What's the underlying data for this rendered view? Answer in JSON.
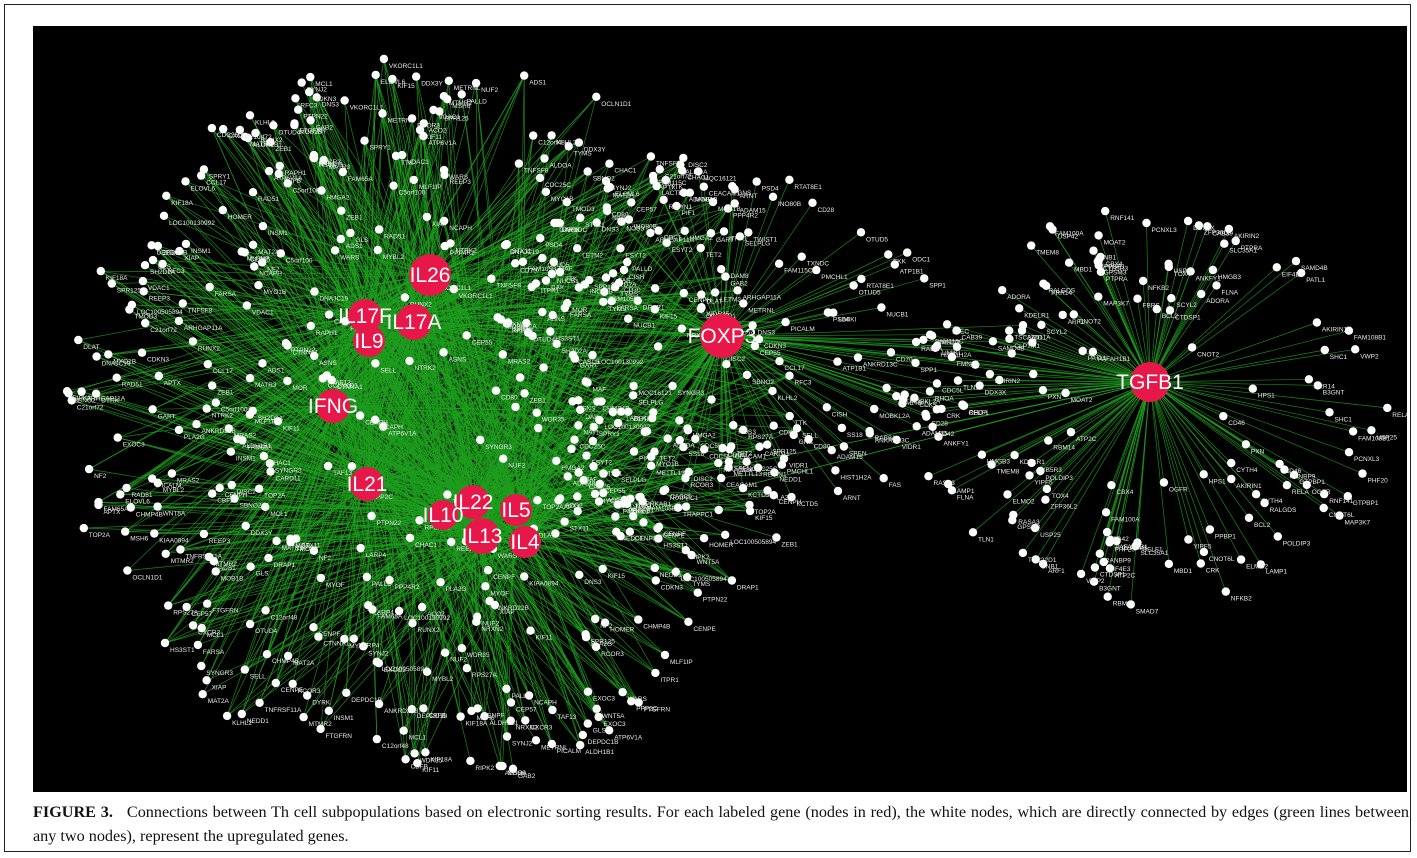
{
  "figure": {
    "number_label": "FIGURE 3.",
    "caption": "Connections between Th cell subpopulations based on electronic sorting results. For each labeled gene (nodes in red), the white nodes, which are directly connected by edges (green lines between any two nodes), represent the upregulated genes."
  },
  "colors": {
    "background": "#000000",
    "hub_node": "#e8174a",
    "gene_node": "#ffffff",
    "edge": "#1f9e1f"
  },
  "network": {
    "hubs": [
      {
        "name": "IL26"
      },
      {
        "name": "IL17F"
      },
      {
        "name": "IL17A"
      },
      {
        "name": "IL9"
      },
      {
        "name": "IFNG"
      },
      {
        "name": "IL21"
      },
      {
        "name": "IL22"
      },
      {
        "name": "IL5"
      },
      {
        "name": "IL10"
      },
      {
        "name": "IL13"
      },
      {
        "name": "IL4"
      },
      {
        "name": "FOXP3"
      },
      {
        "name": "TGFB1"
      }
    ],
    "gene_labels": {
      "il_cluster": [
        "TTK",
        "NUF2",
        "RAD51",
        "LOC100505894",
        "KLHL2",
        "APTX",
        "CENPF",
        "NF2",
        "SYNGR3",
        "NCAPH",
        "PALLD",
        "CENPH",
        "ARHGAP11A",
        "ALDOA",
        "C5orf100",
        "KIF18A",
        "ELOVL6",
        "ADS1",
        "FTGFRN",
        "CENPE",
        "CDKN3",
        "MOB1B",
        "DNS3",
        "SPR125",
        "ASNS",
        "MYBL2",
        "DEPDC1B",
        "CCL17",
        "MYO1B",
        "HMGA2",
        "ALDH1B1",
        "CEP55",
        "KIF11",
        "TOP2A",
        "MTMR2",
        "C21orf72",
        "CDC25C",
        "STX11",
        "FAM65A",
        "KIF15",
        "TYMS",
        "SH2D2A",
        "WDR35",
        "CXCR3",
        "CHAC1",
        "OCLN1D1",
        "MLF1IP",
        "NRXN2",
        "WARS",
        "MYOF",
        "VKORC1L1",
        "FARSA",
        "GART",
        "INSM1",
        "ATP6V1A",
        "VDAC1",
        "MAT2A",
        "MSH6",
        "PPP2C",
        "LARP4",
        "DLAT",
        "EXOC3",
        "METRNL",
        "SBNO2",
        "DISC2",
        "ZEB1",
        "PLA2G",
        "HS3ST1",
        "SYNJ2",
        "XIAP",
        "RCOR3",
        "NEDD1",
        "CBFB",
        "CHMP4B",
        "MATR3",
        "TNFSF8",
        "RUNX2",
        "GLS",
        "OTUD4",
        "MCL1",
        "RPS27A",
        "ZEB1",
        "PTPN22",
        "LOC100130992",
        "REEP3",
        "TAF13",
        "DDX3Y",
        "ANKRD22B",
        "NTRK2",
        "PICALM",
        "TMOD3",
        "ESYT2",
        "RAPH1",
        "RFC3",
        "SPRY1",
        "DYRK",
        "MOR",
        "HOMER",
        "PPP4R2",
        "NAB1",
        "SELL",
        "WNT5A",
        "MRAS2",
        "CEP57",
        "KIAA0894",
        "C12orf48",
        "CTNNA1",
        "DNAJC19",
        "TNFRSF11A",
        "CARD11",
        "ACO2",
        "GAB2",
        "DRAP1",
        "RIPK2",
        "ITPR1"
      ],
      "foxp3_cluster": [
        "CD70",
        "CDC5L",
        "FAM105B",
        "PMCHL1",
        "MAF",
        "SPP1",
        "MOBKL2A",
        "CD80",
        "CEACAM1",
        "SELPLG",
        "TET2",
        "CASC5",
        "ADAM15",
        "OTUD5",
        "FAM115C",
        "ADAM8",
        "ODC1",
        "INO80B",
        "PSD4",
        "NUCB1",
        "ATP1B1",
        "CISH",
        "PRKAB1",
        "CD28",
        "DAK",
        "CDK5",
        "KCTD5",
        "PIF1",
        "TWIST1",
        "RAB6A",
        "VIDR1",
        "SPEN",
        "LETM2",
        "FKK",
        "UMIKI",
        "METTL13",
        "NAT1",
        "ARNT",
        "FAS",
        "HIST1H2A",
        "TRAPPC1",
        "LACTB",
        "ANKRD13C",
        "RTAT8E1",
        "SS18",
        "MQC16121",
        "GNS",
        "REPIN1",
        "NOS3",
        "TXNDC"
      ],
      "tgfb1_cluster": [
        "PHF20",
        "PRR14",
        "GTPBP1",
        "AKIRIN2",
        "RASA3",
        "LAMP1",
        "FAM108B1",
        "ELMO2",
        "CLPTM1",
        "CBX4",
        "SHC1",
        "FAM100A",
        "POLDIP3",
        "ZFP36L2",
        "CRK",
        "FLNA",
        "MOAT2",
        "RHOA",
        "PTPRA",
        "CD42",
        "BCL2",
        "RELA",
        "USP25",
        "NFKB2",
        "EIF4E3",
        "CYTH4",
        "ATP2C",
        "B3GNT",
        "RALGDS",
        "TSC22D1",
        "SLC35A1",
        "GPSM3",
        "SAMD4B",
        "SMAD7",
        "CD46",
        "HPS1",
        "TMEM8",
        "VWP2",
        "USP42",
        "ADORA",
        "DDX3X",
        "CYB5R3",
        "PAFAH1B1",
        "HMGB3",
        "RANBP9",
        "MBD1",
        "SCYL2",
        "CNOT6L",
        "RNF141",
        "PPBP1",
        "GNB1",
        "PXN",
        "MAP3K7",
        "YIPF5",
        "ARF1",
        "TLN1",
        "CTDSP1",
        "AKIRIN1",
        "KDELR1",
        "ANKFY1",
        "TOX4",
        "CELF1",
        "CNOT2",
        "PCNXL3",
        "OGFR",
        "CAB39",
        "RBM14",
        "PATL1",
        "FBRS",
        "PLEC",
        "ARID1A",
        "FMNL1"
      ]
    }
  }
}
